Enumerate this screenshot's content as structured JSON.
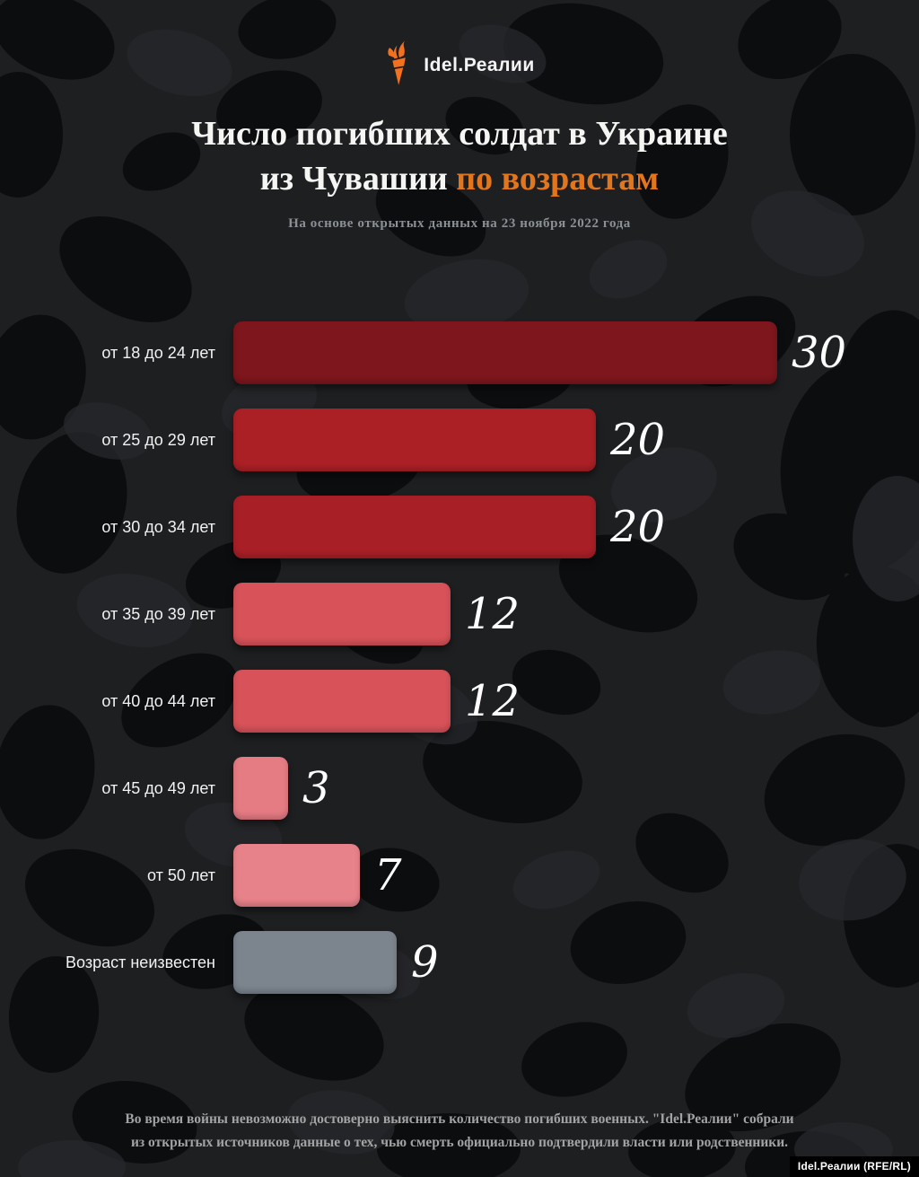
{
  "brand": {
    "logo_text": "Idel.Реалии",
    "logo_icon": "torch-icon",
    "logo_color": "#f4701f"
  },
  "title": {
    "line1": "Число погибших солдат в Украине",
    "line2_white": "из Чувашии",
    "line2_accent": "по возрастам",
    "accent_color": "#e2761d"
  },
  "subtitle": "На основе открытых данных на 23 ноября 2022 года",
  "chart_data": {
    "type": "bar",
    "orientation": "horizontal",
    "title": "Число погибших солдат в Украине из Чувашии по возрастам",
    "subtitle": "На основе открытых данных на 23 ноября 2022 года",
    "categories": [
      "от 18 до 24 лет",
      "от 25 до 29 лет",
      "от 30 до 34 лет",
      "от 35 до 39 лет",
      "от 40 до 44 лет",
      "от 45 до 49 лет",
      "от 50 лет",
      "Возраст неизвестен"
    ],
    "values": [
      30,
      20,
      20,
      12,
      12,
      3,
      7,
      9
    ],
    "bar_colors": [
      "#7d161d",
      "#ab2025",
      "#a81f26",
      "#d75259",
      "#d75259",
      "#e57b83",
      "#e8828a",
      "#7c848e"
    ],
    "xlabel": "",
    "ylabel": "",
    "xlim": [
      0,
      30
    ],
    "grid": false,
    "legend": false,
    "value_labels_shown": true,
    "background": "#1e1f21"
  },
  "footer": {
    "line1": "Во время войны невозможно достоверно выяснить количество погибших военных. \"Idel.Реалии\" собрали",
    "line2": "из открытых источников данные о тех, чью смерть официально подтвердили власти или родственники."
  },
  "attribution": "Idel.Реалии (RFE/RL)"
}
